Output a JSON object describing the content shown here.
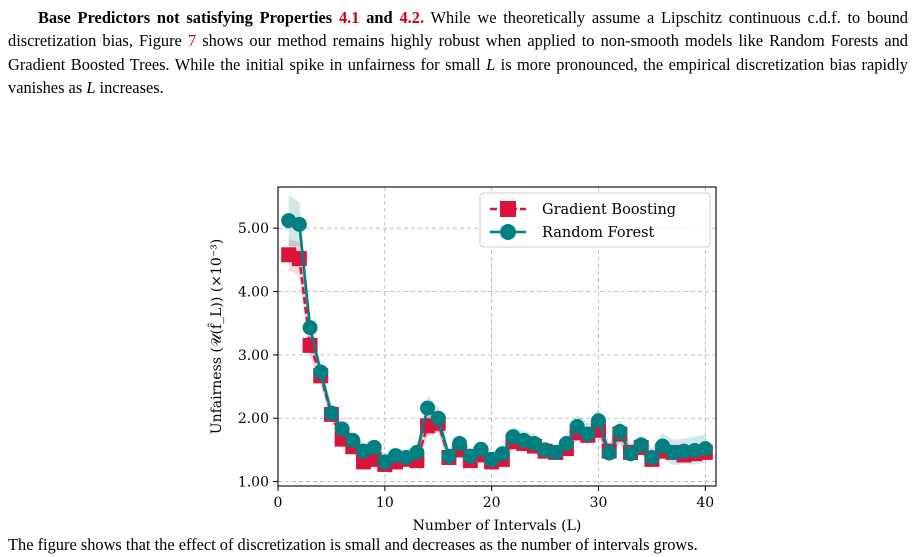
{
  "paragraph": {
    "lead": "Base Predictors not satisfying Properties",
    "ref1": "4.1",
    "and": "and",
    "ref2": "4.2.",
    "text1": "While we theoretically assume a Lipschitz continuous c.d.f. to bound discretization bias, Figure",
    "ref3": "7",
    "text2": "shows our method remains highly robust when applied to non-smooth models like Random Forests and Gradient Boosted Trees. While the initial spike in unfairness for small",
    "var1": "L",
    "text3": "is more pronounced, the empirical discretization bias rapidly vanishes as",
    "var2": "L",
    "text4": "increases."
  },
  "chart_data": {
    "type": "line",
    "xlabel": "Number of Intervals (L)",
    "ylabel": "Unfairness (𝒰(f̂_L)) (×10⁻³)",
    "xlim": [
      0,
      41
    ],
    "ylim": [
      0.93,
      5.65
    ],
    "xticks": [
      0,
      10,
      20,
      30,
      40
    ],
    "yticks": [
      1.0,
      2.0,
      3.0,
      4.0,
      5.0
    ],
    "ytick_labels": [
      "1.00",
      "2.00",
      "3.00",
      "4.00",
      "5.00"
    ],
    "grid": true,
    "legend": "top-right",
    "x": [
      1,
      2,
      3,
      4,
      5,
      6,
      7,
      8,
      9,
      10,
      11,
      12,
      13,
      14,
      15,
      16,
      17,
      18,
      19,
      20,
      21,
      22,
      23,
      24,
      25,
      26,
      27,
      28,
      29,
      30,
      31,
      32,
      33,
      34,
      35,
      36,
      37,
      38,
      39,
      40
    ],
    "series": [
      {
        "name": "Gradient Boosting",
        "color": "#dc143c",
        "marker": "square",
        "values": [
          4.58,
          4.52,
          3.15,
          2.67,
          2.06,
          1.67,
          1.55,
          1.31,
          1.35,
          1.27,
          1.31,
          1.35,
          1.33,
          1.88,
          1.92,
          1.38,
          1.5,
          1.33,
          1.42,
          1.31,
          1.35,
          1.63,
          1.6,
          1.56,
          1.48,
          1.46,
          1.52,
          1.77,
          1.73,
          1.81,
          1.48,
          1.75,
          1.46,
          1.54,
          1.35,
          1.48,
          1.46,
          1.42,
          1.44,
          1.46
        ],
        "band": [
          0.25,
          0.25,
          0.18,
          0.15,
          0.12,
          0.1,
          0.1,
          0.1,
          0.1,
          0.1,
          0.1,
          0.1,
          0.1,
          0.15,
          0.15,
          0.1,
          0.1,
          0.1,
          0.1,
          0.1,
          0.1,
          0.12,
          0.12,
          0.12,
          0.1,
          0.1,
          0.1,
          0.12,
          0.12,
          0.12,
          0.1,
          0.12,
          0.1,
          0.1,
          0.1,
          0.1,
          0.1,
          0.1,
          0.1,
          0.1
        ]
      },
      {
        "name": "Random Forest",
        "color": "#008080",
        "marker": "circle",
        "values": [
          5.12,
          5.06,
          3.43,
          2.73,
          2.08,
          1.83,
          1.65,
          1.48,
          1.54,
          1.31,
          1.41,
          1.38,
          1.46,
          2.16,
          2.0,
          1.4,
          1.6,
          1.4,
          1.51,
          1.35,
          1.44,
          1.71,
          1.65,
          1.6,
          1.5,
          1.46,
          1.6,
          1.87,
          1.75,
          1.96,
          1.45,
          1.79,
          1.44,
          1.58,
          1.38,
          1.56,
          1.46,
          1.48,
          1.49,
          1.52
        ],
        "band": [
          0.4,
          0.35,
          0.2,
          0.15,
          0.12,
          0.12,
          0.12,
          0.12,
          0.12,
          0.12,
          0.12,
          0.12,
          0.12,
          0.2,
          0.18,
          0.12,
          0.12,
          0.12,
          0.12,
          0.12,
          0.12,
          0.15,
          0.15,
          0.15,
          0.12,
          0.12,
          0.15,
          0.18,
          0.18,
          0.2,
          0.15,
          0.2,
          0.15,
          0.15,
          0.15,
          0.2,
          0.2,
          0.2,
          0.22,
          0.22
        ]
      }
    ]
  },
  "caption": {
    "text": "The figure shows that the effect of discretization is small and decreases as the number of intervals grows."
  }
}
